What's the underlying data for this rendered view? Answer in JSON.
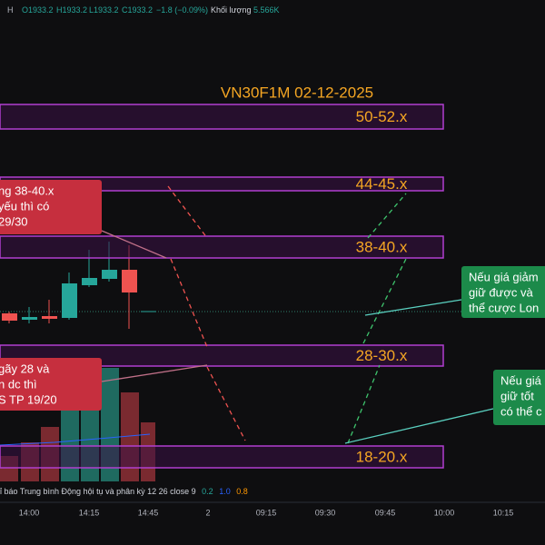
{
  "header": {
    "items": [
      "O1933.2",
      "H1933.2",
      "L1933.2",
      "C1933.2",
      "−1.8 (−0.09%)"
    ],
    "volume_label": "Khối lượng",
    "volume_value": "5.566K"
  },
  "title": "VN30F1M 02-12-2025",
  "zones": [
    "50-52.x",
    "44-45.x",
    "38-40.x",
    "28-30.x",
    "18-20.x"
  ],
  "notes_red": [
    [
      "ng 38-40.x",
      "yếu thì có",
      "29/30"
    ],
    [
      "gãy 28 và",
      "n dc thì",
      "S TP 19/20"
    ]
  ],
  "notes_green": [
    [
      "Nếu giá giảm",
      "giữ được và",
      "thể cược Lon"
    ],
    [
      "Nếu giá",
      "giữ tốt",
      "có thể c"
    ]
  ],
  "indicator": {
    "name": "ỉ báo Trung bình Động hội tụ và phân kỳ 12 26 close 9",
    "values": [
      "0.2",
      "1.0",
      "0.8"
    ]
  },
  "time_axis": [
    "14:00",
    "14:15",
    "14:45",
    "2",
    "09:15",
    "09:30",
    "09:45",
    "10:00",
    "10:15"
  ]
}
